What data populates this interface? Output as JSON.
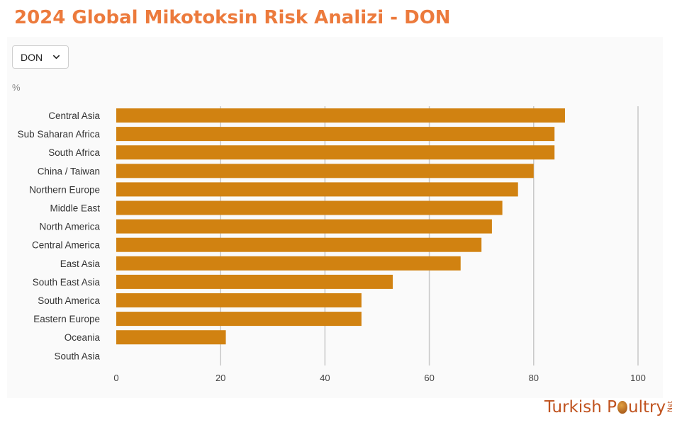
{
  "title": "2024 Global Mikotoksin Risk Analizi  - DON",
  "dropdown": {
    "selected": "DON"
  },
  "unit_label": "%",
  "logo": {
    "part1": "Turkish P",
    "part2": "ultry",
    "suffix": "Net"
  },
  "colors": {
    "bar": "#d18211",
    "title": "#ec7a3c",
    "grid": "#c8c8c8"
  },
  "chart_data": {
    "type": "bar",
    "orientation": "horizontal",
    "categories": [
      "Central Asia",
      "Sub Saharan Africa",
      "South Africa",
      "China / Taiwan",
      "Northern Europe",
      "Middle East",
      "North America",
      "Central America",
      "East Asia",
      "South East Asia",
      "South America",
      "Eastern Europe",
      "Oceania",
      "South Asia"
    ],
    "values": [
      86,
      84,
      84,
      80,
      77,
      74,
      72,
      70,
      66,
      53,
      47,
      47,
      21,
      0
    ],
    "xlim": [
      0,
      100
    ],
    "xticks": [
      0,
      20,
      40,
      60,
      80,
      100
    ],
    "grid": "vertical"
  }
}
